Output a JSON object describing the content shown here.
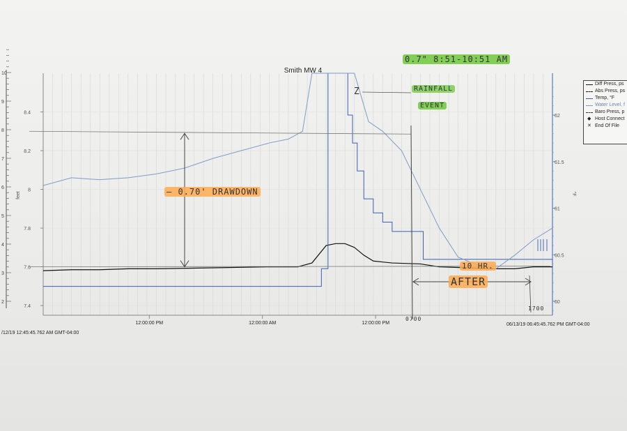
{
  "chart_data": {
    "type": "line",
    "title": "Smith MW 4",
    "ylabel": "feet",
    "y2label": "°F",
    "x_start": "/12/19 12:45:45.762 AM GMT-04:00",
    "x_end": "06/13/19 06:45:45.762 PM GMT-04:00",
    "x_tick_labels": [
      "12:00:00 PM",
      "12:00:00 AM",
      "12:00:00 PM"
    ],
    "y_ticks": [
      7.4,
      7.6,
      7.8,
      8,
      8.2,
      8.4
    ],
    "y_ticks_outer": [
      2,
      3,
      4,
      5,
      6,
      7,
      8,
      9,
      10
    ],
    "y2_ticks": [
      60,
      60.5,
      61,
      61.5,
      62
    ],
    "ylim": [
      7.35,
      8.6
    ],
    "y2lim": [
      59.85,
      62.45
    ],
    "series": [
      {
        "name": "Diff Press, psi",
        "color": "#111111",
        "x": [
          0,
          3,
          6,
          9,
          12,
          18,
          24,
          27,
          28.5,
          30,
          31,
          32,
          33,
          34,
          35,
          36,
          37,
          40,
          42,
          48,
          50,
          52,
          54
        ],
        "y": [
          7.58,
          7.585,
          7.585,
          7.59,
          7.59,
          7.595,
          7.6,
          7.6,
          7.62,
          7.71,
          7.72,
          7.72,
          7.7,
          7.66,
          7.63,
          7.625,
          7.62,
          7.615,
          7.6,
          7.59,
          7.59,
          7.6,
          7.6
        ]
      },
      {
        "name": "Temp, °F",
        "color": "#3a5fb8",
        "x": [
          0,
          29.5,
          30.2,
          31,
          31.8,
          32.3,
          32.8,
          33.3,
          34,
          35,
          36,
          37,
          38.5,
          39.5,
          40.3,
          54
        ],
        "y": [
          60.16,
          60.35,
          62.45,
          62.45,
          62.45,
          62.0,
          61.7,
          61.4,
          61.1,
          60.95,
          60.85,
          60.75,
          60.75,
          60.75,
          60.45,
          60.45
        ]
      },
      {
        "name": "Water Level, ft",
        "color": "#7f9cc7",
        "x": [
          0,
          3,
          6,
          9,
          12,
          15,
          18,
          21,
          24,
          26,
          27.5,
          28.5,
          33,
          34.5,
          36,
          38,
          40,
          42,
          44,
          46,
          48,
          50,
          52,
          54
        ],
        "y": [
          8.02,
          8.06,
          8.05,
          8.06,
          8.08,
          8.11,
          8.16,
          8.2,
          8.24,
          8.26,
          8.3,
          8.6,
          8.6,
          8.35,
          8.3,
          8.2,
          8.0,
          7.8,
          7.65,
          7.61,
          7.59,
          7.66,
          7.74,
          7.8
        ]
      }
    ],
    "legend": {
      "placement": "right",
      "entries": [
        "Diff Press, ps",
        "Abs Press, ps",
        "Temp, °F",
        "Water Level, f",
        "Baro Press, p",
        "Host Connect",
        "End Of File"
      ]
    },
    "annotations": {
      "drawdown": "— 0.70' DRAWDOWN",
      "rainfall_amount": "0.7\" 8:51-10:51 AM",
      "rainfall_label_1": "RAINFALL",
      "rainfall_label_2": "EVENT",
      "arrow_z": "Z",
      "hours": "10 HR.",
      "after": "AFTER",
      "t_start": "0700",
      "t_end": "1700"
    }
  }
}
